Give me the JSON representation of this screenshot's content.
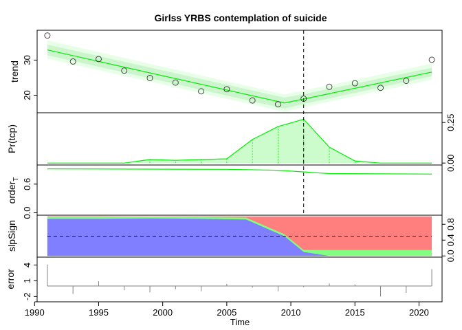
{
  "chart_data": {
    "type": "line",
    "title": "Girlss YRBS contemplation of suicide",
    "xlabel": "Time",
    "xlim": [
      1990.2,
      2021.8
    ],
    "x_ticks": [
      1990,
      1995,
      2000,
      2005,
      2010,
      2015,
      2020
    ],
    "changepoint_x": 2011,
    "colors": {
      "trend": "#00ee00",
      "band_outer": "#e6ffe6",
      "band_inner": "#cdf5cd",
      "prob_fill": "#ccfccc",
      "pos": "#7f7fff",
      "neg": "#ff7f7f",
      "zero": "#80ff80",
      "error": "#808080"
    },
    "panels": {
      "trend": {
        "ylabel": "trend",
        "ylim": [
          15.0,
          38.5
        ],
        "ticks": [
          20,
          30
        ],
        "observed_x": [
          1991,
          1993,
          1995,
          1997,
          1999,
          2001,
          2003,
          2005,
          2007,
          2009,
          2011,
          2013,
          2015,
          2017,
          2019,
          2021
        ],
        "observed_y": [
          37.0,
          29.6,
          30.3,
          27.0,
          24.9,
          23.6,
          21.1,
          21.7,
          18.5,
          17.4,
          19.0,
          22.4,
          23.4,
          22.1,
          24.1,
          30.1
        ],
        "fit_x": [
          1991,
          2009.5,
          2011,
          2021
        ],
        "fit_y": [
          32.9,
          17.8,
          18.9,
          26.6
        ],
        "band_inner_lo": [
          31.4,
          16.2,
          17.5,
          25.4
        ],
        "band_inner_hi": [
          34.4,
          19.3,
          20.3,
          27.8
        ],
        "band_outer_lo": [
          30.4,
          15.3,
          16.6,
          24.4
        ],
        "band_outer_hi": [
          35.6,
          20.2,
          21.3,
          29.0
        ]
      },
      "prob": {
        "ylabel": "Pr(tcp)",
        "ylim": [
          -0.012,
          0.31
        ],
        "ticks": [
          "0.00",
          "0.25"
        ],
        "tick_values": [
          0.0,
          0.25
        ],
        "x": [
          1991,
          1997,
          1999,
          2001,
          2003,
          2005,
          2007,
          2009,
          2011,
          2013,
          2015,
          2017,
          2021
        ],
        "y": [
          0.0,
          0.0,
          0.022,
          0.017,
          0.022,
          0.026,
          0.145,
          0.225,
          0.27,
          0.098,
          0.013,
          0.0,
          0.0
        ]
      },
      "order": {
        "ylabel_main": "order",
        "ylabel_sub": "T",
        "ylim": [
          -0.05,
          1.0
        ],
        "ticks": [
          "0.0",
          "0.6"
        ],
        "tick_values": [
          0.0,
          0.6
        ],
        "x": [
          1991,
          2005,
          2009,
          2013,
          2021
        ],
        "y": [
          0.92,
          0.91,
          0.89,
          0.82,
          0.81
        ]
      },
      "slpsign": {
        "ylabel": "slpSign",
        "ylim": [
          -0.03,
          1.03
        ],
        "ticks": [
          "0.0",
          "0.4",
          "0.8"
        ],
        "tick_values": [
          0.0,
          0.4,
          0.8
        ],
        "reference_y": 0.5,
        "x": [
          1991,
          1995,
          1999,
          2003,
          2006.5,
          2009.5,
          2011,
          2013,
          2021
        ],
        "pos_y": [
          0.94,
          0.94,
          0.95,
          0.94,
          0.92,
          0.5,
          0.1,
          0.0,
          0.0
        ],
        "zero_y": [
          0.04,
          0.04,
          0.04,
          0.04,
          0.05,
          0.05,
          0.05,
          0.15,
          0.15
        ]
      },
      "error": {
        "ylabel": "error",
        "ylim": [
          -3.0,
          5.5
        ],
        "ticks": [
          "-2",
          "1",
          "4"
        ],
        "tick_values": [
          -2,
          1,
          4
        ],
        "baseline": 0.0,
        "x": [
          1991,
          1993,
          1995,
          1997,
          1999,
          2001,
          2003,
          2005,
          2007,
          2009,
          2011,
          2013,
          2015,
          2017,
          2019,
          2021
        ],
        "y": [
          4.1,
          -1.5,
          0.9,
          -0.8,
          -1.2,
          -0.6,
          -1.0,
          0.4,
          -0.3,
          -1.0,
          -0.2,
          0.5,
          0.3,
          -2.0,
          -1.3,
          3.2
        ]
      }
    }
  }
}
